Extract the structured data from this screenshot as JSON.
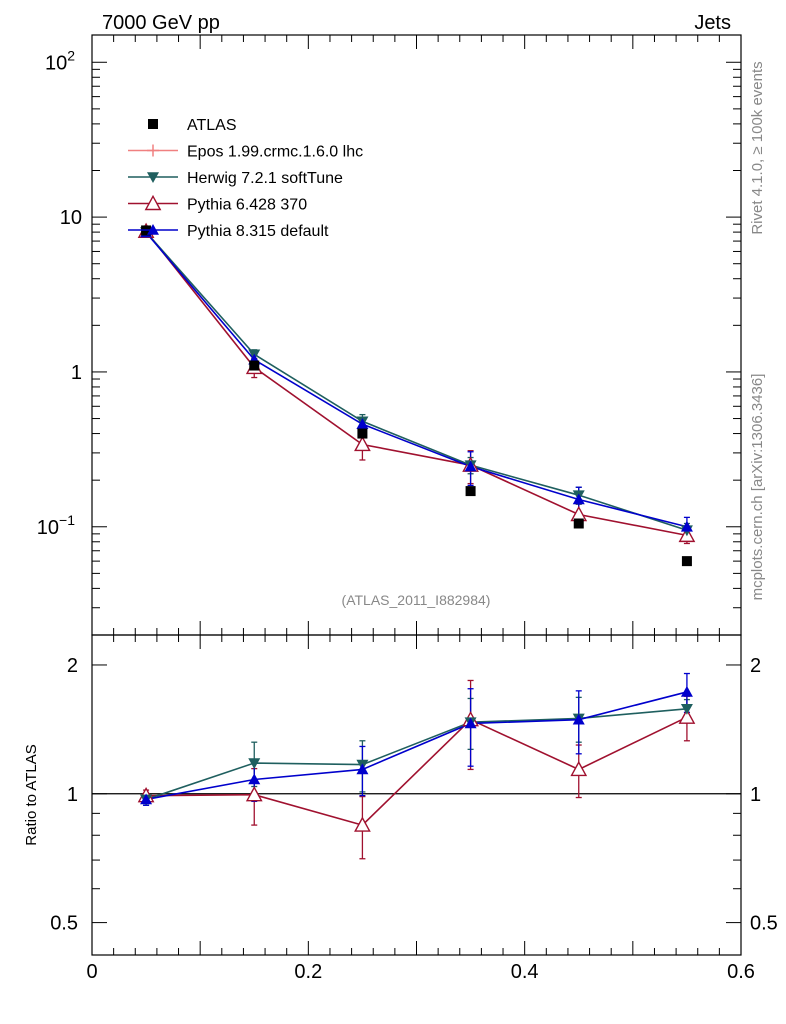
{
  "header": {
    "left": "7000 GeV pp",
    "right": "Jets"
  },
  "side": {
    "rivet": "Rivet 4.1.0, ≥ 100k events",
    "mcplots": "mcplots.cern.ch [arXiv:1306.3436]"
  },
  "analysis_label": "(ATLAS_2011_I882984)",
  "colors": {
    "atlas": "#000000",
    "epos": "#f08080",
    "herwig": "#1f5f5f",
    "pythia6": "#a0112f",
    "pythia8": "#0000cc"
  },
  "chart_data": [
    {
      "type": "line",
      "yscale": "log",
      "xlim": [
        0,
        0.6
      ],
      "ylim": [
        0.02,
        150
      ],
      "x": [
        0.05,
        0.15,
        0.25,
        0.35,
        0.45,
        0.55
      ],
      "ytick_labels": [
        "10^-1",
        "1",
        "10",
        "10^2"
      ],
      "legend": [
        "ATLAS",
        "Epos 1.99.crmc.1.6.0 lhc",
        "Herwig 7.2.1 softTune",
        "Pythia 6.428 370",
        "Pythia 8.315 default"
      ],
      "series": [
        {
          "name": "ATLAS",
          "marker": "square",
          "values": [
            8.2,
            1.1,
            0.4,
            0.17,
            0.105,
            0.06
          ],
          "errors": [
            0,
            0,
            0,
            0,
            0,
            0
          ]
        },
        {
          "name": "Herwig 7.2.1 softTune",
          "marker": "triangle-down",
          "values": [
            8.0,
            1.3,
            0.48,
            0.25,
            0.16,
            0.095
          ],
          "errors": [
            0.3,
            0.09,
            0.05,
            0.03,
            0.02,
            0.01
          ]
        },
        {
          "name": "Pythia 6.428 370",
          "marker": "triangle-up-open",
          "values": [
            8.1,
            1.07,
            0.34,
            0.25,
            0.12,
            0.088
          ],
          "errors": [
            0.3,
            0.15,
            0.07,
            0.06,
            0.02,
            0.01
          ]
        },
        {
          "name": "Pythia 8.315 default",
          "marker": "triangle-up",
          "values": [
            7.95,
            1.2,
            0.46,
            0.245,
            0.15,
            0.1
          ],
          "errors": [
            0.3,
            0.08,
            0.05,
            0.06,
            0.03,
            0.015
          ]
        }
      ]
    },
    {
      "type": "line",
      "yscale": "log",
      "ylabel": "Ratio to ATLAS",
      "xlim": [
        0,
        0.6
      ],
      "ylim": [
        0.42,
        2.35
      ],
      "x": [
        0.05,
        0.15,
        0.25,
        0.35,
        0.45,
        0.55
      ],
      "xtick_labels": [
        "0",
        "0.2",
        "0.4",
        "0.6"
      ],
      "ytick_labels": [
        "0.5",
        "1",
        "2"
      ],
      "series": [
        {
          "name": "Herwig 7.2.1 softTune",
          "values": [
            0.97,
            1.18,
            1.17,
            1.47,
            1.5,
            1.58
          ],
          "errors": [
            0.03,
            0.14,
            0.16,
            0.2,
            0.18,
            0.08
          ]
        },
        {
          "name": "Pythia 6.428 370",
          "values": [
            0.99,
            0.995,
            0.845,
            1.49,
            1.14,
            1.51
          ],
          "errors": [
            0.03,
            0.15,
            0.14,
            0.35,
            0.16,
            0.18
          ]
        },
        {
          "name": "Pythia 8.315 default",
          "values": [
            0.97,
            1.08,
            1.14,
            1.46,
            1.49,
            1.73
          ],
          "errors": [
            0.03,
            0.12,
            0.15,
            0.3,
            0.25,
            0.18
          ]
        }
      ]
    }
  ]
}
